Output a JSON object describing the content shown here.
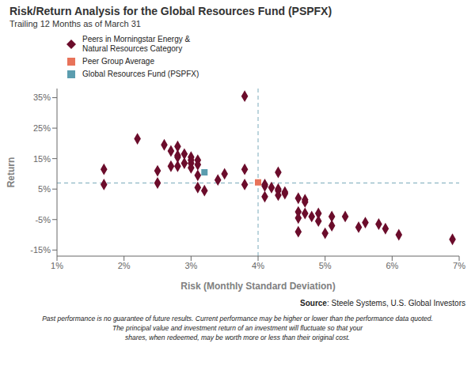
{
  "chart_data": {
    "type": "scatter",
    "title": "Risk/Return Analysis for the Global Resources Fund (PSPFX)",
    "subtitle": "Trailing 12 Months as of March 31",
    "xlabel": "Risk (Monthly Standard Deviation)",
    "ylabel": "Return",
    "xlim": [
      0.01,
      0.07
    ],
    "ylim": [
      -0.17,
      0.38
    ],
    "xticks": [
      {
        "value": 0.01,
        "label": "1%"
      },
      {
        "value": 0.02,
        "label": "2%"
      },
      {
        "value": 0.03,
        "label": "3%"
      },
      {
        "value": 0.04,
        "label": "4%"
      },
      {
        "value": 0.05,
        "label": "5%"
      },
      {
        "value": 0.06,
        "label": "6%"
      },
      {
        "value": 0.07,
        "label": "7%"
      }
    ],
    "yticks": [
      {
        "value": -0.15,
        "label": "-15%"
      },
      {
        "value": -0.05,
        "label": "-5%"
      },
      {
        "value": 0.05,
        "label": "5%"
      },
      {
        "value": 0.15,
        "label": "15%"
      },
      {
        "value": 0.25,
        "label": "25%"
      },
      {
        "value": 0.35,
        "label": "35%"
      }
    ],
    "grid": false,
    "reference_lines": {
      "x": 0.04,
      "y": 0.07
    },
    "series": [
      {
        "name": "Peers in Morningstar Energy & Natural Resources Category",
        "color": "#6B0C2B",
        "marker": "diamond",
        "values": [
          [
            0.038,
            0.355
          ],
          [
            0.022,
            0.215
          ],
          [
            0.026,
            0.195
          ],
          [
            0.028,
            0.19
          ],
          [
            0.027,
            0.175
          ],
          [
            0.029,
            0.165
          ],
          [
            0.028,
            0.16
          ],
          [
            0.028,
            0.155
          ],
          [
            0.03,
            0.155
          ],
          [
            0.03,
            0.145
          ],
          [
            0.031,
            0.145
          ],
          [
            0.029,
            0.135
          ],
          [
            0.03,
            0.135
          ],
          [
            0.031,
            0.13
          ],
          [
            0.027,
            0.125
          ],
          [
            0.028,
            0.125
          ],
          [
            0.03,
            0.12
          ],
          [
            0.017,
            0.115
          ],
          [
            0.025,
            0.11
          ],
          [
            0.038,
            0.115
          ],
          [
            0.043,
            0.105
          ],
          [
            0.035,
            0.1
          ],
          [
            0.031,
            0.095
          ],
          [
            0.034,
            0.08
          ],
          [
            0.025,
            0.07
          ],
          [
            0.038,
            0.065
          ],
          [
            0.041,
            0.065
          ],
          [
            0.041,
            0.06
          ],
          [
            0.031,
            0.055
          ],
          [
            0.042,
            0.055
          ],
          [
            0.043,
            0.05
          ],
          [
            0.043,
            0.045
          ],
          [
            0.017,
            0.065
          ],
          [
            0.032,
            0.045
          ],
          [
            0.044,
            0.04
          ],
          [
            0.044,
            0.035
          ],
          [
            0.043,
            0.03
          ],
          [
            0.041,
            0.025
          ],
          [
            0.046,
            0.02
          ],
          [
            0.047,
            0.015
          ],
          [
            0.047,
            0.008
          ],
          [
            0.046,
            -0.025
          ],
          [
            0.047,
            -0.03
          ],
          [
            0.049,
            -0.03
          ],
          [
            0.048,
            -0.04
          ],
          [
            0.051,
            -0.04
          ],
          [
            0.053,
            -0.04
          ],
          [
            0.046,
            -0.045
          ],
          [
            0.049,
            -0.055
          ],
          [
            0.056,
            -0.06
          ],
          [
            0.058,
            -0.065
          ],
          [
            0.051,
            -0.07
          ],
          [
            0.055,
            -0.075
          ],
          [
            0.059,
            -0.08
          ],
          [
            0.046,
            -0.09
          ],
          [
            0.05,
            -0.095
          ],
          [
            0.061,
            -0.1
          ],
          [
            0.069,
            -0.115
          ]
        ]
      },
      {
        "name": "Peer Group Average",
        "color": "#E8735A",
        "marker": "square",
        "values": [
          [
            0.04,
            0.072
          ]
        ]
      },
      {
        "name": "Global Resources Fund (PSPFX)",
        "color": "#5B9DAF",
        "marker": "square",
        "values": [
          [
            0.032,
            0.105
          ]
        ]
      }
    ],
    "annotations": [
      "Source: Steele Systems, U.S. Global Investors",
      "Past performance is no guarantee of future results. Current performance may be higher or lower than the performance data quoted.",
      "The principal value and investment return of an investment will fluctuate so that your",
      "shares, when redeemed, may be worth more or less than their original cost."
    ]
  }
}
